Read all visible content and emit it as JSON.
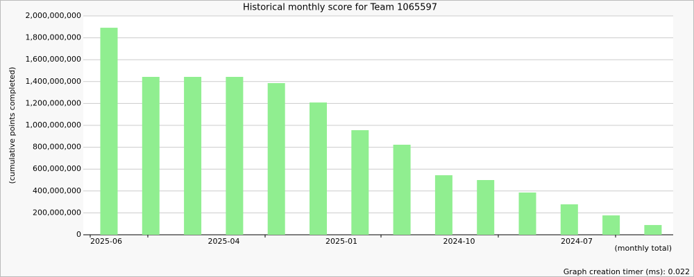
{
  "chart_data": {
    "type": "bar",
    "title": "Historical monthly score for Team 1065597",
    "y_label": "(cumulative points completed)",
    "x_label": "(monthly total)",
    "footer": "Graph creation timer (ms): 0.022",
    "xtick_labels": [
      "2025-06",
      "2025-04",
      "2025-01",
      "2024-10",
      "2024-07"
    ],
    "categories": [
      null,
      null,
      null,
      null,
      null,
      null,
      null,
      null,
      null,
      null,
      null,
      null,
      null,
      null
    ],
    "values": [
      1892000000,
      1443000000,
      1443000000,
      1443000000,
      1386000000,
      1209000000,
      956000000,
      823000000,
      544000000,
      500000000,
      386000000,
      278000000,
      177000000,
      89000000
    ],
    "color": "#90ee90",
    "ylim": [
      0,
      2000000000
    ],
    "yticks": [
      0,
      {
        "value": 200000000,
        "label": "200,000,000"
      },
      {
        "value": 400000000,
        "label": "400,000,000"
      },
      {
        "value": 600000000,
        "label": "600,000,000"
      },
      {
        "value": 800000000,
        "label": "800,000,000"
      },
      {
        "value": 1000000000,
        "label": "1,000,000,000"
      },
      {
        "value": 1200000000,
        "label": "1,200,000,000"
      },
      {
        "value": 1400000000,
        "label": "1,400,000,000"
      },
      {
        "value": 1600000000,
        "label": "1,600,000,000"
      },
      {
        "value": 1800000000,
        "label": "1,800,000,000"
      },
      {
        "value": 2000000000,
        "label": "2,000,000,000"
      }
    ],
    "grid": true
  }
}
